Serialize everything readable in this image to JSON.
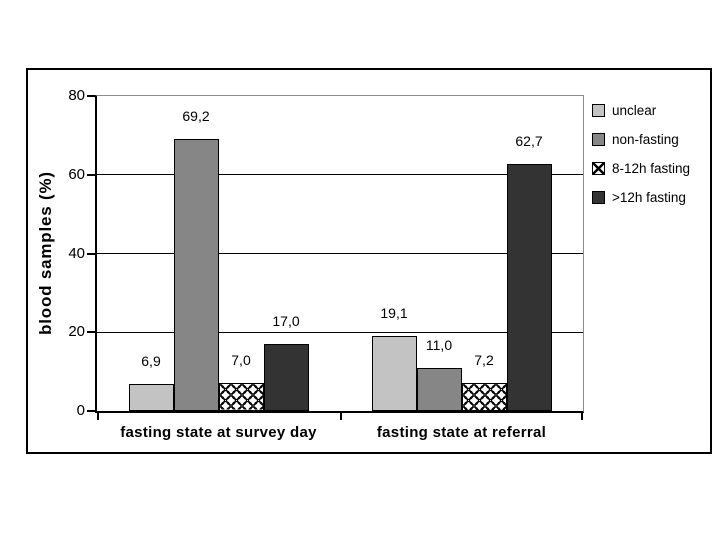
{
  "chart_data": {
    "type": "bar",
    "categories": [
      "fasting state at survey day",
      "fasting state at referral"
    ],
    "series": [
      {
        "name": "unclear",
        "values": [
          6.9,
          19.1
        ],
        "labels": [
          "6,9",
          "19,1"
        ],
        "fill": "#c3c3c3",
        "pattern": "solid"
      },
      {
        "name": "non-fasting",
        "values": [
          69.2,
          11.0
        ],
        "labels": [
          "69,2",
          "11,0"
        ],
        "fill": "#868686",
        "pattern": "solid"
      },
      {
        "name": "8-12h fasting",
        "values": [
          7.0,
          7.2
        ],
        "labels": [
          "7,0",
          "7,2"
        ],
        "fill": "#ffffff",
        "pattern": "fishscale"
      },
      {
        "name": ">12h fasting",
        "values": [
          17.0,
          62.7
        ],
        "labels": [
          "17,0",
          "62,7"
        ],
        "fill": "#333333",
        "pattern": "solid"
      }
    ],
    "ylabel": "blood samples (%)",
    "xlabel": "",
    "ylim": [
      0,
      80
    ],
    "yticks": [
      0,
      20,
      40,
      60,
      80
    ],
    "grid": true,
    "legend_position": "right",
    "decimal_separator": ","
  },
  "colors": {
    "gridline": "#000000",
    "axis": "#000000",
    "plot_border": "#8c8c8c",
    "frame_border": "#000000",
    "background": "#ffffff",
    "bar_dark": "#333333",
    "bar_mid": "#868686",
    "bar_light": "#c3c3c3"
  }
}
